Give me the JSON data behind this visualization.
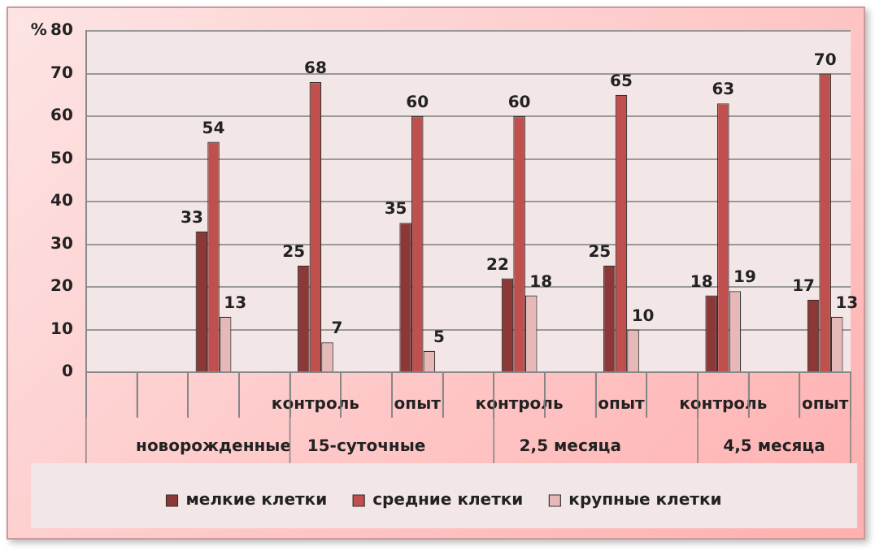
{
  "chart_data": {
    "type": "bar",
    "ylabel": "%",
    "categories": [
      null,
      null,
      null,
      null,
      "контроль",
      null,
      "опыт",
      null,
      "контроль",
      null,
      "опыт",
      null,
      "контроль",
      null,
      "опыт"
    ],
    "series": [
      {
        "name": "мелкие клетки",
        "color": "#8c3836",
        "values": [
          null,
          null,
          33,
          null,
          25,
          null,
          35,
          null,
          22,
          null,
          25,
          null,
          18,
          null,
          17
        ]
      },
      {
        "name": "средние клетки",
        "color": "#c0504d",
        "values": [
          null,
          null,
          54,
          null,
          68,
          null,
          60,
          null,
          60,
          null,
          65,
          null,
          63,
          null,
          70
        ]
      },
      {
        "name": "крупные клетки",
        "color": "#e6b9b8",
        "values": [
          null,
          null,
          13,
          null,
          7,
          null,
          5,
          null,
          18,
          null,
          10,
          null,
          19,
          null,
          13
        ]
      }
    ],
    "annotations": [
      "новорожденные",
      "15-суточные",
      "2,5 месяца",
      "4,5 месяца"
    ],
    "ylim": [
      0,
      80
    ],
    "yticks": [
      0,
      10,
      20,
      30,
      40,
      50,
      60,
      70,
      80
    ],
    "grid": "y",
    "legend": "bottom",
    "data_labels": true
  }
}
